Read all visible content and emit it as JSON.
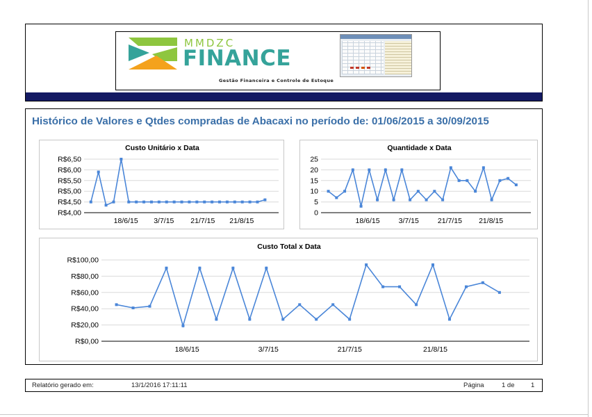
{
  "header": {
    "logo": {
      "brand_small": "MMDZC",
      "brand_big": "FINANCE",
      "tagline": "Gestão Financeira e Controle de Estoque"
    },
    "colors": {
      "bar": "#141a63",
      "logo_green": "#8ec63f",
      "logo_teal": "#35a39a",
      "logo_orange": "#f4a21c"
    }
  },
  "report": {
    "title": "Histórico de Valores e Qtdes compradas de Abacaxi no período de: 01/06/2015 a 30/09/2015",
    "title_color": "#3a6fa8"
  },
  "chart_data": [
    {
      "type": "line",
      "title": "Custo Unitário x Data",
      "color": "#4a86d8",
      "ylim": [
        4.0,
        6.5
      ],
      "yticks": [
        "R$4,00",
        "R$4,50",
        "R$5,00",
        "R$5,50",
        "R$6,00",
        "R$6,50"
      ],
      "xticks": [
        "18/6/15",
        "3/7/15",
        "21/7/15",
        "21/8/15"
      ],
      "grid": true,
      "legend": "none",
      "values": [
        4.5,
        5.9,
        4.35,
        4.5,
        6.5,
        4.5,
        4.5,
        4.5,
        4.5,
        4.5,
        4.5,
        4.5,
        4.5,
        4.5,
        4.5,
        4.5,
        4.5,
        4.5,
        4.5,
        4.5,
        4.5,
        4.5,
        4.5,
        4.6
      ]
    },
    {
      "type": "line",
      "title": "Quantidade x Data",
      "color": "#4a86d8",
      "ylim": [
        0,
        25
      ],
      "yticks": [
        "0",
        "5",
        "10",
        "15",
        "20",
        "25"
      ],
      "xticks": [
        "18/6/15",
        "3/7/15",
        "21/7/15",
        "21/8/15"
      ],
      "grid": true,
      "legend": "none",
      "values": [
        10,
        7,
        10,
        20,
        3,
        20,
        6,
        20,
        6,
        20,
        6,
        10,
        6,
        10,
        6,
        21,
        15,
        15,
        10,
        21,
        6,
        15,
        16,
        13
      ]
    },
    {
      "type": "line",
      "title": "Custo Total x Data",
      "color": "#4a86d8",
      "ylim": [
        0,
        100
      ],
      "yticks": [
        "R$0,00",
        "R$20,00",
        "R$40,00",
        "R$60,00",
        "R$80,00",
        "R$100,00"
      ],
      "xticks": [
        "18/6/15",
        "3/7/15",
        "21/7/15",
        "21/8/15"
      ],
      "grid": true,
      "legend": "none",
      "values": [
        45,
        41,
        43,
        90,
        19,
        90,
        27,
        90,
        27,
        90,
        27,
        45,
        27,
        45,
        27,
        94,
        67,
        67,
        45,
        94,
        27,
        67,
        72,
        60
      ]
    }
  ],
  "footer": {
    "generated_label": "Relatório gerado em:",
    "generated_value": "13/1/2016 17:11:11",
    "page_label": "Página",
    "page_current": "1 de",
    "page_total": "1"
  }
}
